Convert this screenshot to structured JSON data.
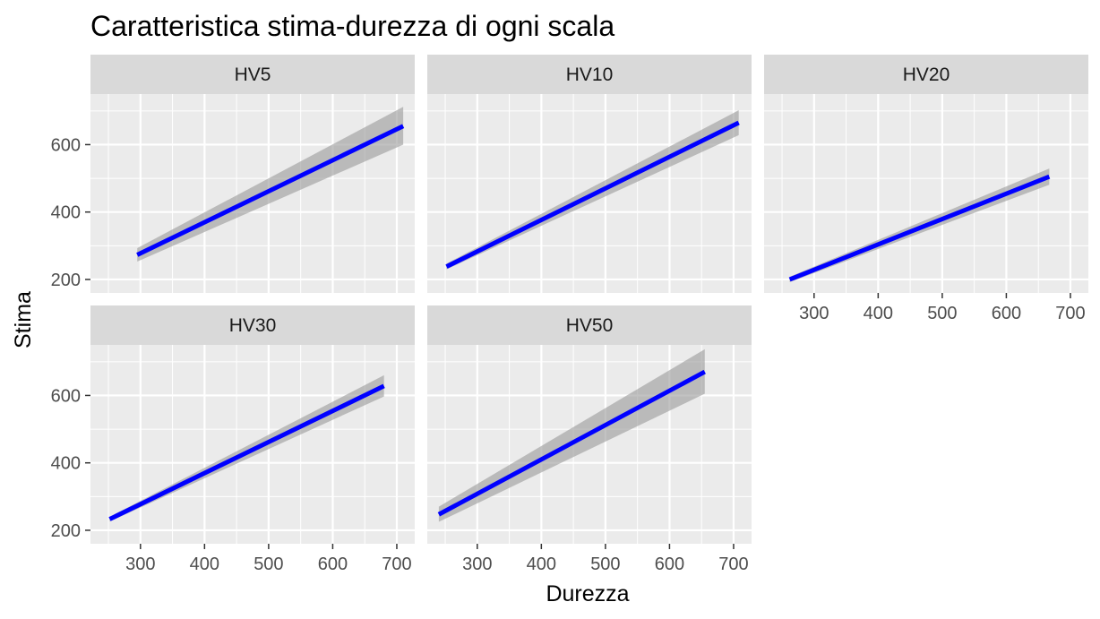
{
  "chart_data": {
    "type": "line",
    "title": "Caratteristica stima-durezza di ogni scala",
    "xlabel": "Durezza",
    "ylabel": "Stima",
    "x_ticks": [
      300,
      400,
      500,
      600,
      700
    ],
    "y_ticks": [
      200,
      400,
      600
    ],
    "xlim": [
      222,
      728
    ],
    "ylim": [
      160,
      750
    ],
    "grid": true,
    "line_color": "#0000ff",
    "ribbon_color": "#999999",
    "panel_bg": "#ebebeb",
    "strip_bg": "#d9d9d9",
    "panels": [
      {
        "name": "HV5",
        "x": [
          295,
          710
        ],
        "y": [
          273,
          655
        ],
        "band_lower": [
          253,
          600
        ],
        "band_upper": [
          293,
          712
        ]
      },
      {
        "name": "HV10",
        "x": [
          252,
          708
        ],
        "y": [
          238,
          665
        ],
        "band_lower": [
          230,
          628
        ],
        "band_upper": [
          247,
          702
        ]
      },
      {
        "name": "HV20",
        "x": [
          262,
          667
        ],
        "y": [
          200,
          505
        ],
        "band_lower": [
          192,
          481
        ],
        "band_upper": [
          208,
          529
        ]
      },
      {
        "name": "HV30",
        "x": [
          252,
          680
        ],
        "y": [
          233,
          628
        ],
        "band_lower": [
          226,
          597
        ],
        "band_upper": [
          240,
          660
        ]
      },
      {
        "name": "HV50",
        "x": [
          240,
          655
        ],
        "y": [
          247,
          670
        ],
        "band_lower": [
          225,
          605
        ],
        "band_upper": [
          270,
          737
        ]
      }
    ]
  }
}
